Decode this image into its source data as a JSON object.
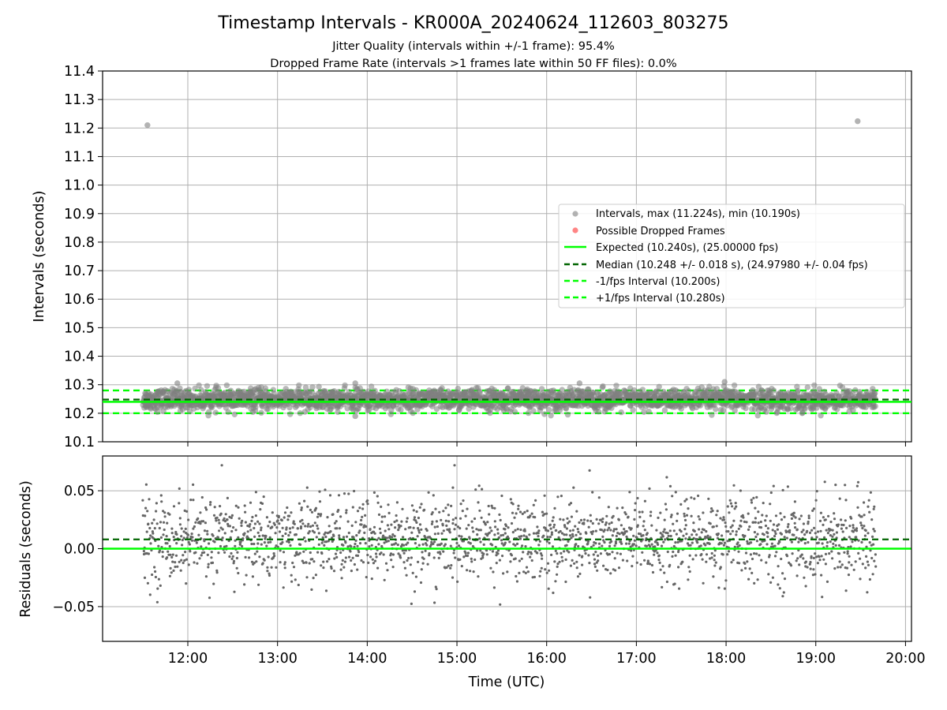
{
  "colors": {
    "interval_points": "#808080",
    "dropped_points": "#ff6666",
    "expected_line": "#00ff00",
    "median_line": "#006400",
    "fps_bound_lines": "#00ff00",
    "residual_points": "#666666",
    "grid": "#b0b0b0"
  },
  "chart_data": [
    {
      "panel": "intervals",
      "type": "scatter",
      "title": "Timestamp Intervals - KR000A_20240624_112603_803275",
      "subtitle_lines": [
        "Jitter Quality (intervals within +/-1 frame): 95.4%",
        "Dropped Frame Rate (intervals >1 frames late within 50 FF files): 0.0%"
      ],
      "xlabel": "",
      "ylabel": "Intervals (seconds)",
      "xlim": [
        "11:03",
        "20:04"
      ],
      "ylim": [
        10.1,
        11.4
      ],
      "y_ticks": [
        "10.1",
        "10.2",
        "10.3",
        "10.4",
        "10.5",
        "10.6",
        "10.7",
        "10.8",
        "10.9",
        "11.0",
        "11.1",
        "11.2",
        "11.3",
        "11.4"
      ],
      "x_ticks": [
        "12:00",
        "13:00",
        "14:00",
        "15:00",
        "16:00",
        "17:00",
        "18:00",
        "19:00",
        "20:00"
      ],
      "x_tick_labels_visible": false,
      "grid": true,
      "legend_position": "center-right",
      "data_time_range": [
        "11:30",
        "19:40"
      ],
      "series": [
        {
          "name": "Intervals, max (11.224s), min (10.190s)",
          "kind": "points",
          "band": {
            "center": 10.248,
            "spread": 0.018
          },
          "outliers": [
            {
              "x": "11:33",
              "y": 11.21
            },
            {
              "x": "19:28",
              "y": 11.224
            },
            {
              "x": "11:53",
              "y": 10.305
            },
            {
              "x": "13:52",
              "y": 10.305
            },
            {
              "x": "16:22",
              "y": 10.305
            },
            {
              "x": "17:59",
              "y": 10.31
            },
            {
              "x": "13:52",
              "y": 10.19
            }
          ]
        },
        {
          "name": "Possible Dropped Frames",
          "kind": "points",
          "values": []
        },
        {
          "name": "Expected (10.240s), (25.00000 fps)",
          "kind": "hline",
          "y": 10.24
        },
        {
          "name": "Median (10.248 +/- 0.018 s), (24.97980 +/- 0.04 fps)",
          "kind": "hline",
          "y": 10.248
        },
        {
          "name": "-1/fps Interval (10.200s)",
          "kind": "hline",
          "y": 10.2
        },
        {
          "name": "+1/fps Interval (10.280s)",
          "kind": "hline",
          "y": 10.28
        }
      ]
    },
    {
      "panel": "residuals",
      "type": "scatter",
      "xlabel": "Time (UTC)",
      "ylabel": "Residuals (seconds)",
      "xlim": [
        "11:03",
        "20:04"
      ],
      "ylim": [
        -0.08,
        0.08
      ],
      "y_ticks": [
        "0.05",
        "0.00",
        "−0.05"
      ],
      "y_tick_values": [
        0.05,
        0.0,
        -0.05
      ],
      "x_ticks": [
        "12:00",
        "13:00",
        "14:00",
        "15:00",
        "16:00",
        "17:00",
        "18:00",
        "19:00",
        "20:00"
      ],
      "grid": true,
      "series": [
        {
          "name": "",
          "kind": "points",
          "band": {
            "center": 0.008,
            "spread": 0.018,
            "min": -0.05,
            "max": 0.072
          }
        },
        {
          "name": "",
          "kind": "hline",
          "y": 0.0
        },
        {
          "name": "",
          "kind": "hline",
          "y": 0.008
        }
      ]
    }
  ]
}
